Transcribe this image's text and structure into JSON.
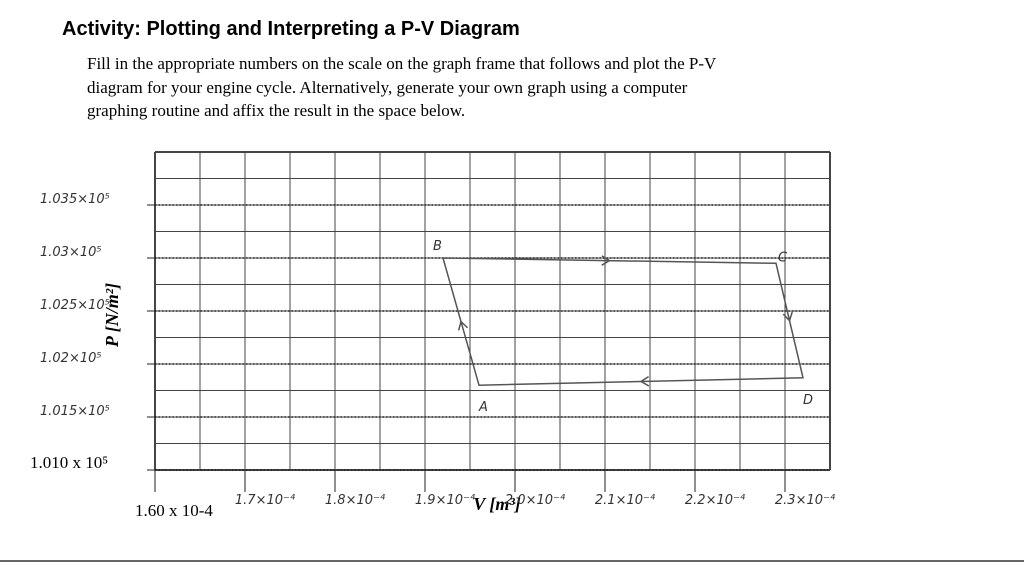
{
  "header": {
    "title": "Activity: Plotting and Interpreting a P-V Diagram"
  },
  "instructions": {
    "lines": [
      "Fill in the appropriate numbers on the scale on the graph frame that follows and plot the P-V",
      "diagram for your engine cycle.  Alternatively, generate your own graph using a computer",
      "graphing routine and affix the result in the space below."
    ]
  },
  "chart_data": {
    "type": "line",
    "xlabel": "V [m³]",
    "ylabel": "P [N/m²]",
    "xlim": [
      0.00016,
      0.000235
    ],
    "ylim": [
      101000,
      104000
    ],
    "xticks": [
      {
        "value": 0.00016,
        "label": "1.60 x 10-4"
      },
      {
        "value": 0.00017,
        "label": "1.7×10⁻⁴"
      },
      {
        "value": 0.00018,
        "label": "1.8×10⁻⁴"
      },
      {
        "value": 0.00019,
        "label": "1.9×10⁻⁴"
      },
      {
        "value": 0.0002,
        "label": "2.0×10⁻⁴"
      },
      {
        "value": 0.00021,
        "label": "2.1×10⁻⁴"
      },
      {
        "value": 0.00022,
        "label": "2.2×10⁻⁴"
      },
      {
        "value": 0.00023,
        "label": "2.3×10⁻⁴"
      }
    ],
    "yticks": [
      {
        "value": 101000,
        "label": "1.010 x 10⁵"
      },
      {
        "value": 101500,
        "label": "1.015×10⁵"
      },
      {
        "value": 102000,
        "label": "1.02×10⁵"
      },
      {
        "value": 102500,
        "label": "1.025×10⁵"
      },
      {
        "value": 103000,
        "label": "1.03×10⁵"
      },
      {
        "value": 103500,
        "label": "1.035×10⁵"
      }
    ],
    "point_labels": [
      "A",
      "B",
      "C",
      "D"
    ],
    "x": [
      0.000196,
      0.000192,
      0.000229,
      0.000232
    ],
    "values": [
      101800,
      103000,
      102950,
      101870
    ],
    "color": "#555555"
  }
}
